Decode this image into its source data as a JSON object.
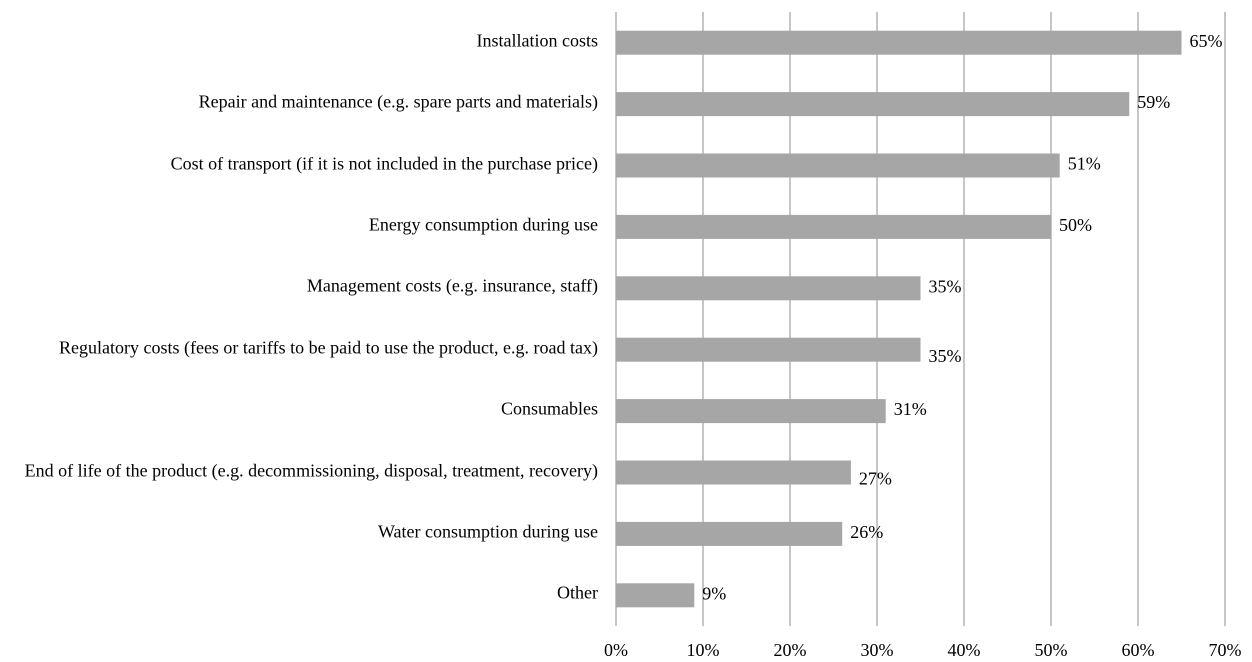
{
  "chart_data": {
    "type": "barh",
    "categories": [
      "Installation costs",
      "Repair and maintenance (e.g. spare parts and materials)",
      "Cost of transport (if it is not included in the purchase price)",
      "Energy consumption during use",
      "Management costs (e.g. insurance, staff)",
      "Regulatory costs (fees or tariffs to be paid to use the product, e.g. road tax)",
      "Consumables",
      "End of life of the product (e.g. decommissioning, disposal, treatment, recovery)",
      "Water consumption during use",
      "Other"
    ],
    "values": [
      65,
      59,
      51,
      50,
      35,
      35,
      31,
      27,
      26,
      9
    ],
    "value_labels": [
      "65%",
      "59%",
      "51%",
      "50%",
      "35%",
      "35%",
      "31%",
      "27%",
      "26%",
      "9%"
    ],
    "color": "#a6a6a6",
    "xlim": [
      0,
      70
    ],
    "xticks": [
      {
        "value": 0,
        "label": "0%"
      },
      {
        "value": 10,
        "label": "10%"
      },
      {
        "value": 20,
        "label": "20%"
      },
      {
        "value": 30,
        "label": "30%"
      },
      {
        "value": 40,
        "label": "40%"
      },
      {
        "value": 50,
        "label": "50%"
      },
      {
        "value": 60,
        "label": "60%"
      },
      {
        "value": 70,
        "label": "70%"
      }
    ],
    "grid": true
  }
}
